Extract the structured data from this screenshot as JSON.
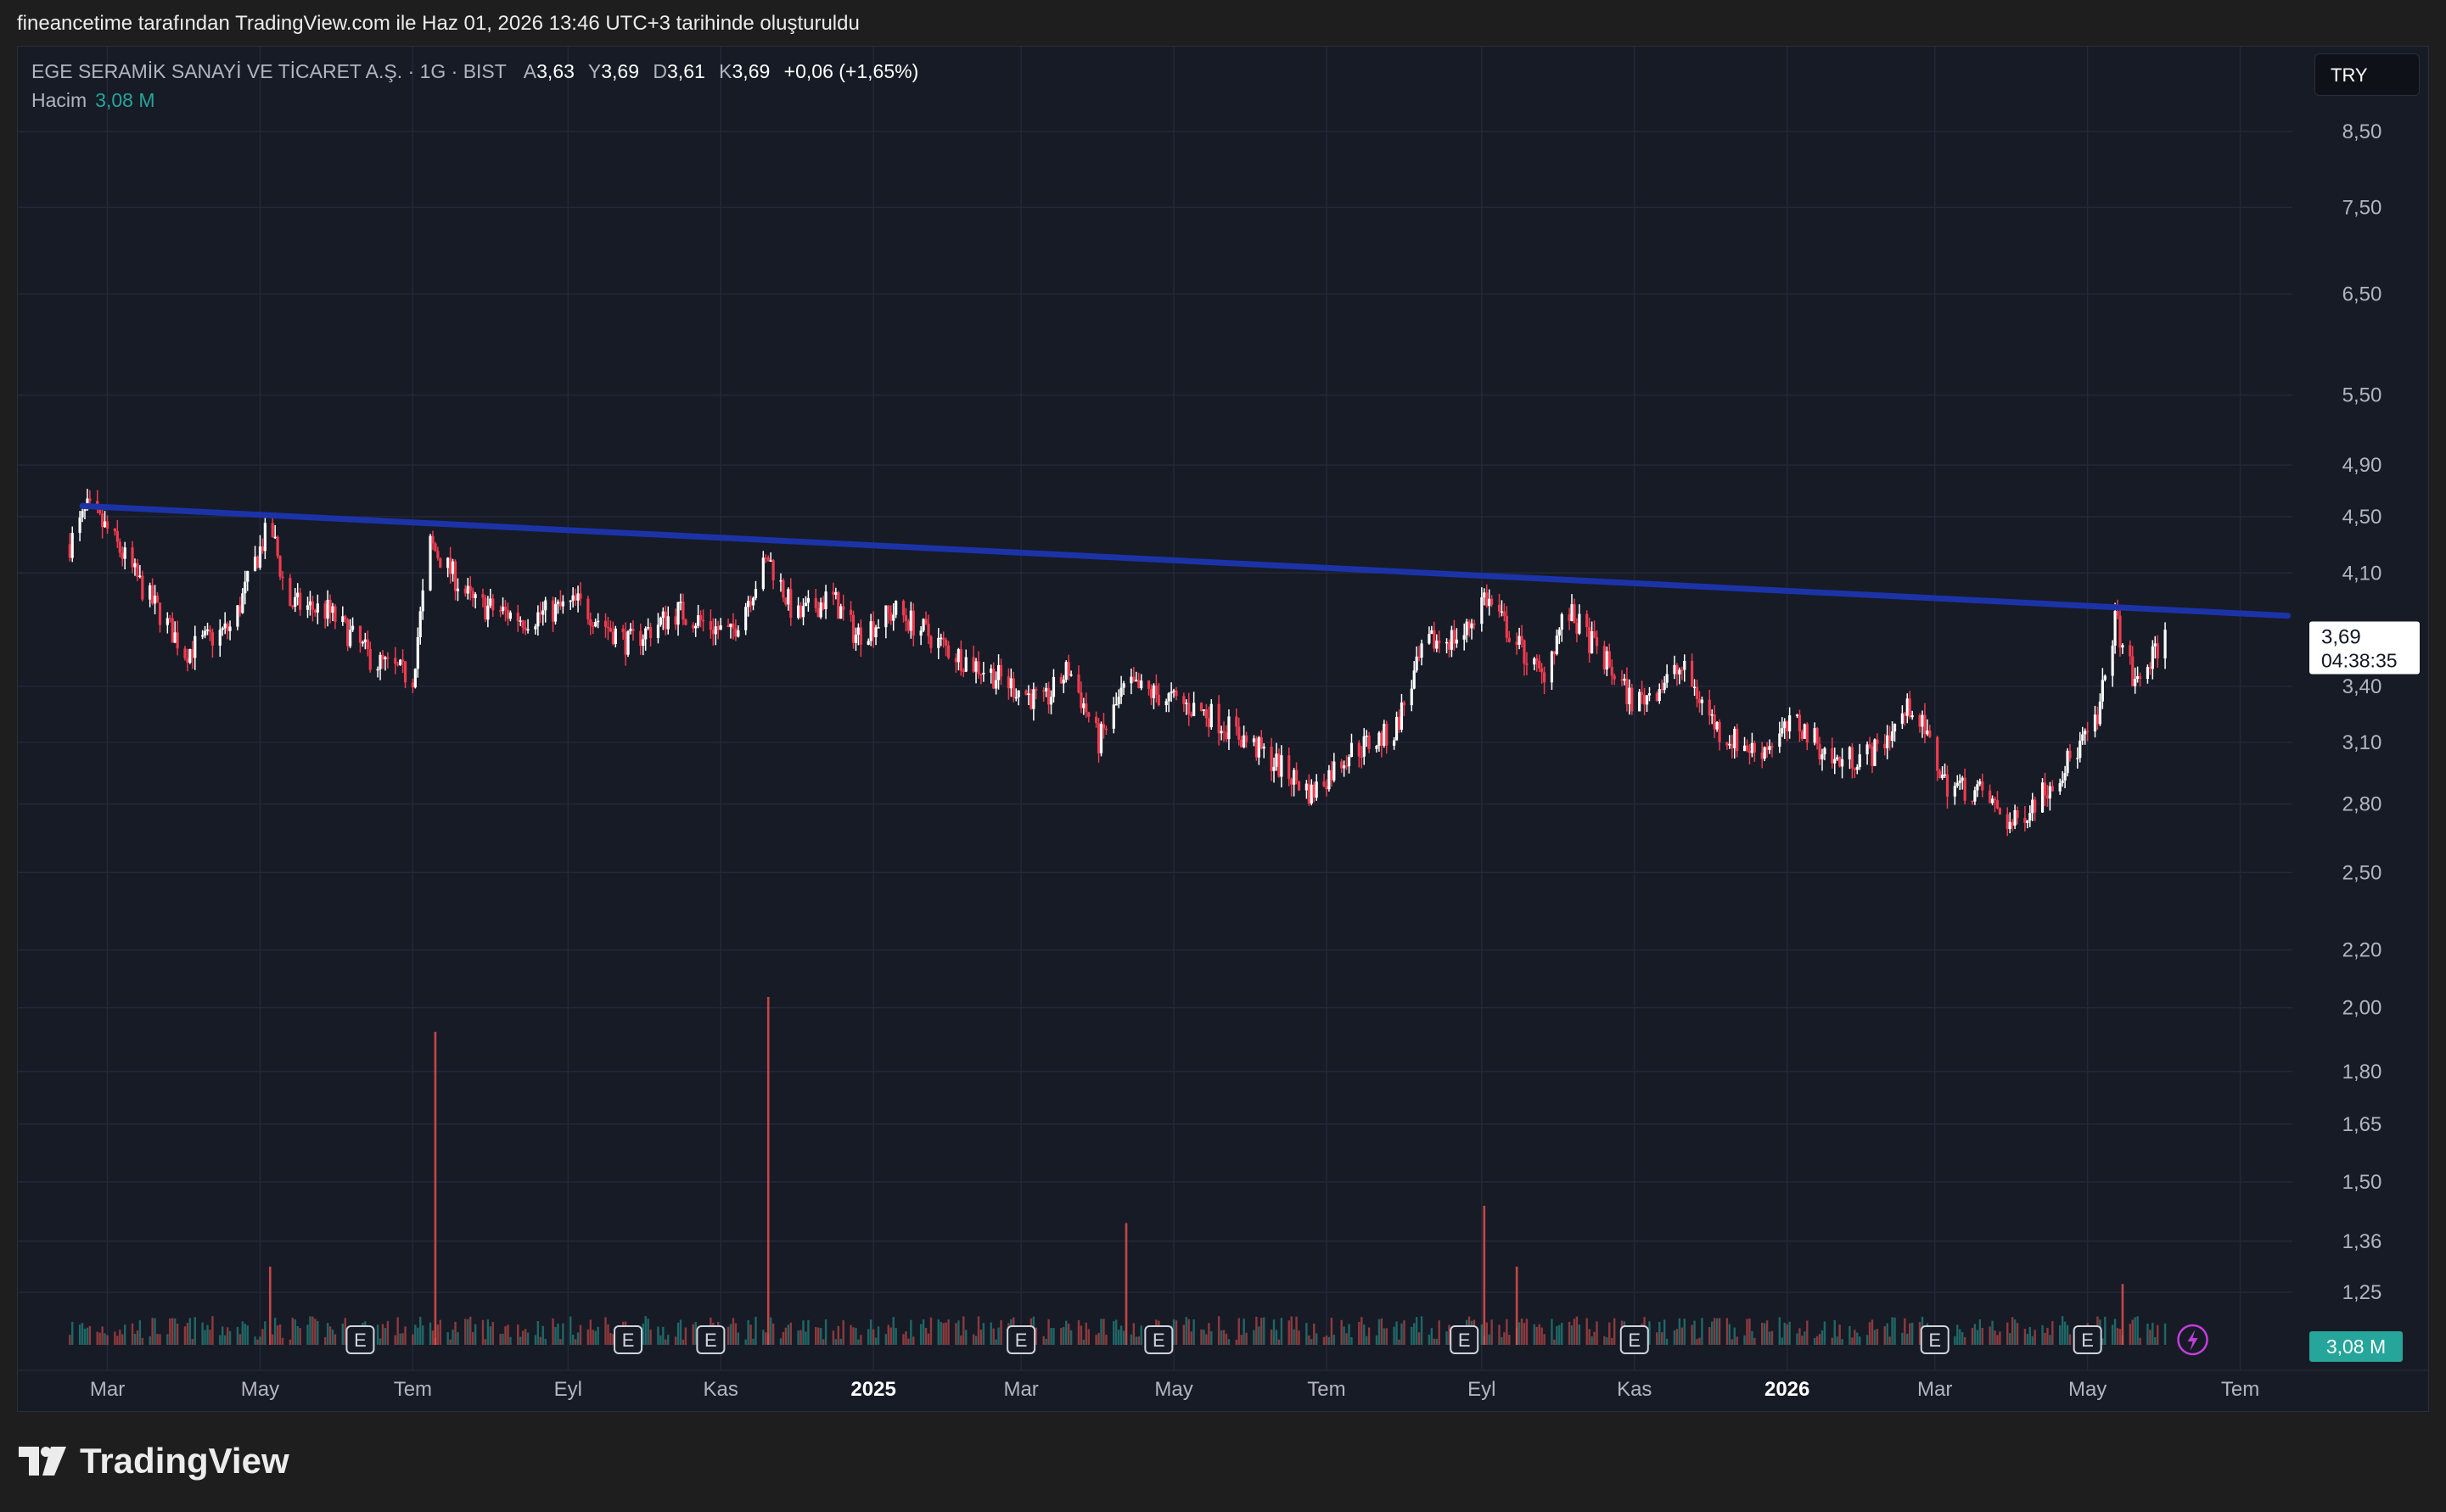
{
  "caption": "fineancetime tarafından TradingView.com ile Haz 01, 2026 13:46 UTC+3 tarihinde oluşturuldu",
  "header": {
    "symbol": "EGE SERAMİK SANAYİ VE TİCARET A.Ş. · 1G · BIST",
    "open_label": "A",
    "open": "3,63",
    "high_label": "Y",
    "high": "3,69",
    "low_label": "D",
    "low": "3,61",
    "close_label": "K",
    "close": "3,69",
    "change": "+0,06 (+1,65%)",
    "volume_label": "Hacim",
    "volume": "3,08 M"
  },
  "currency": "TRY",
  "price_tag": {
    "price": "3,69",
    "countdown": "04:38:35"
  },
  "volume_tag": "3,08 M",
  "earnings_marker_label": "E",
  "brand": "TradingView",
  "colors": {
    "up": "#ffffff",
    "down": "#ef3b4f",
    "trendline": "#1c33a8",
    "volume_up": "#26a69a",
    "volume_down": "#ef5350",
    "grid": "#232838",
    "background": "#171b26"
  },
  "chart_data": {
    "type": "candlestick",
    "y_scale": "log",
    "y_ticks": [
      "8,50",
      "7,50",
      "6,50",
      "5,50",
      "4,90",
      "4,50",
      "4,10",
      "3,40",
      "3,10",
      "2,80",
      "2,50",
      "2,20",
      "2,00",
      "1,80",
      "1,65",
      "1,50",
      "1,36",
      "1,25"
    ],
    "x_ticks": [
      "Mar",
      "May",
      "Tem",
      "Eyl",
      "Kas",
      "2025",
      "Mar",
      "May",
      "Tem",
      "Eyl",
      "Kas",
      "2026",
      "Mar",
      "May",
      "Tem"
    ],
    "x_ticks_bold": [
      "2025",
      "2026"
    ],
    "price_path": [
      [
        "2024-02-15",
        4.3
      ],
      [
        "2024-02-22",
        4.55
      ],
      [
        "2024-03-01",
        4.4
      ],
      [
        "2024-03-15",
        4.0
      ],
      [
        "2024-04-01",
        3.6
      ],
      [
        "2024-04-20",
        3.75
      ],
      [
        "2024-05-05",
        4.45
      ],
      [
        "2024-05-12",
        3.9
      ],
      [
        "2024-05-28",
        3.85
      ],
      [
        "2024-06-15",
        3.55
      ],
      [
        "2024-07-01",
        3.45
      ],
      [
        "2024-07-08",
        4.3
      ],
      [
        "2024-07-25",
        3.9
      ],
      [
        "2024-08-15",
        3.8
      ],
      [
        "2024-09-05",
        3.9
      ],
      [
        "2024-09-25",
        3.65
      ],
      [
        "2024-10-15",
        3.85
      ],
      [
        "2024-11-05",
        3.7
      ],
      [
        "2024-11-20",
        4.2
      ],
      [
        "2024-12-01",
        3.8
      ],
      [
        "2024-12-15",
        3.95
      ],
      [
        "2024-12-25",
        3.7
      ],
      [
        "2025-01-10",
        3.85
      ],
      [
        "2025-02-01",
        3.6
      ],
      [
        "2025-02-20",
        3.45
      ],
      [
        "2025-03-10",
        3.3
      ],
      [
        "2025-03-20",
        3.5
      ],
      [
        "2025-04-01",
        3.1
      ],
      [
        "2025-04-12",
        3.4
      ],
      [
        "2025-04-25",
        3.35
      ],
      [
        "2025-05-15",
        3.25
      ],
      [
        "2025-06-05",
        3.05
      ],
      [
        "2025-06-25",
        2.85
      ],
      [
        "2025-07-10",
        3.05
      ],
      [
        "2025-07-28",
        3.15
      ],
      [
        "2025-08-10",
        3.65
      ],
      [
        "2025-08-25",
        3.7
      ],
      [
        "2025-09-02",
        3.95
      ],
      [
        "2025-09-15",
        3.65
      ],
      [
        "2025-09-25",
        3.45
      ],
      [
        "2025-10-05",
        3.85
      ],
      [
        "2025-10-20",
        3.55
      ],
      [
        "2025-11-01",
        3.3
      ],
      [
        "2025-11-20",
        3.5
      ],
      [
        "2025-12-05",
        3.15
      ],
      [
        "2025-12-20",
        3.05
      ],
      [
        "2026-01-05",
        3.2
      ],
      [
        "2026-01-20",
        3.0
      ],
      [
        "2026-02-05",
        3.05
      ],
      [
        "2026-02-20",
        3.3
      ],
      [
        "2026-03-05",
        2.9
      ],
      [
        "2026-03-20",
        2.85
      ],
      [
        "2026-04-01",
        2.7
      ],
      [
        "2026-04-20",
        2.95
      ],
      [
        "2026-05-05",
        3.2
      ],
      [
        "2026-05-12",
        3.8
      ],
      [
        "2026-05-20",
        3.4
      ],
      [
        "2026-06-01",
        3.69
      ]
    ],
    "volume_spikes": [
      [
        "2024-07-10",
        1.8
      ],
      [
        "2024-11-20",
        2.0
      ],
      [
        "2025-04-12",
        0.7
      ],
      [
        "2025-09-02",
        0.8
      ],
      [
        "2025-09-15",
        0.45
      ],
      [
        "2024-05-05",
        0.45
      ],
      [
        "2026-05-15",
        0.35
      ]
    ],
    "trendline": {
      "from": [
        "2024-02-20",
        4.58
      ],
      "to": [
        "2026-07-20",
        3.82
      ]
    },
    "earnings_dates": [
      "2024-06-10",
      "2024-09-25",
      "2024-10-28",
      "2025-03-01",
      "2025-04-25",
      "2025-08-25",
      "2025-11-01",
      "2026-03-01",
      "2026-05-01"
    ],
    "volume_axis_value": "3,08 M",
    "grid": true
  }
}
